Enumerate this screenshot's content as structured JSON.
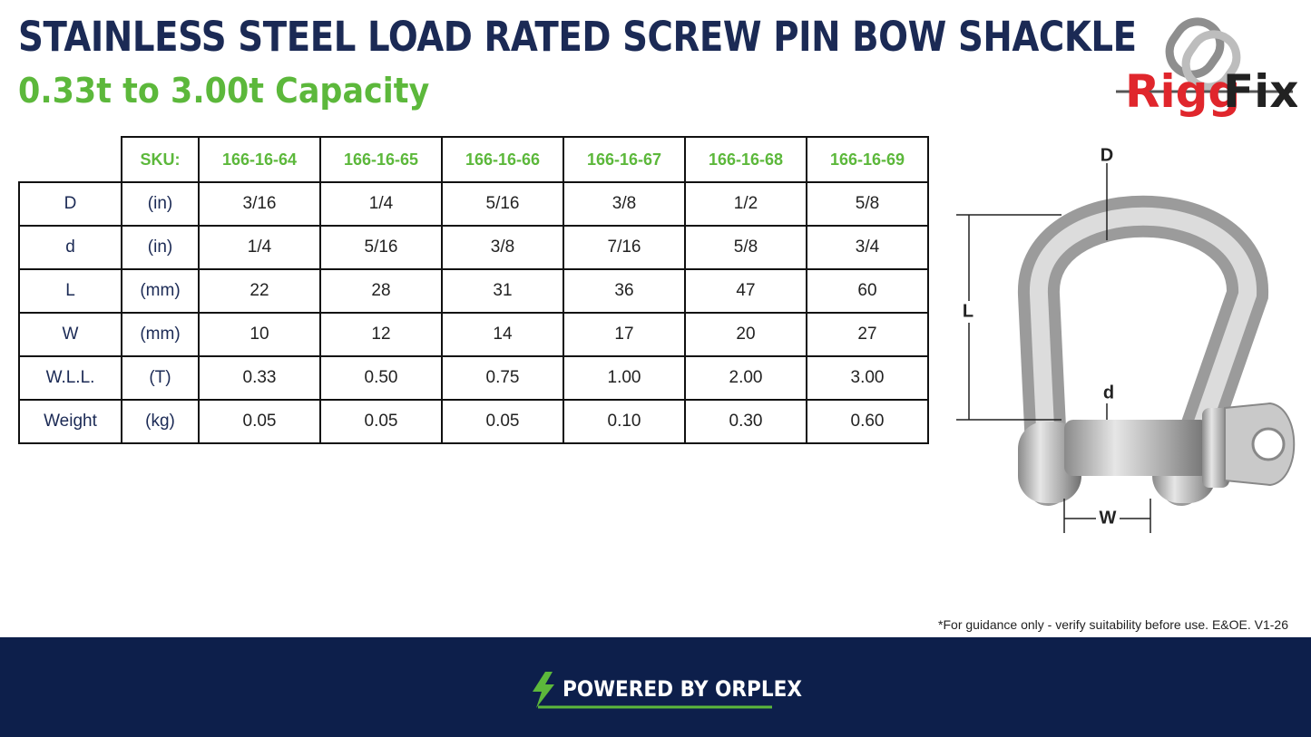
{
  "header": {
    "title": "STAINLESS STEEL LOAD RATED SCREW PIN BOW SHACKLE",
    "subtitle": "0.33t to 3.00t Capacity"
  },
  "logo": {
    "part1": "Rigg",
    "part2": "Fix"
  },
  "table": {
    "header": [
      "SKU:",
      "166-16-64",
      "166-16-65",
      "166-16-66",
      "166-16-67",
      "166-16-68",
      "166-16-69"
    ],
    "rows": [
      [
        "D",
        "(in)",
        "3/16",
        "1/4",
        "5/16",
        "3/8",
        "1/2",
        "5/8"
      ],
      [
        "d",
        "(in)",
        "1/4",
        "5/16",
        "3/8",
        "7/16",
        "5/8",
        "3/4"
      ],
      [
        "L",
        "(mm)",
        "22",
        "28",
        "31",
        "36",
        "47",
        "60"
      ],
      [
        "W",
        "(mm)",
        "10",
        "12",
        "14",
        "17",
        "20",
        "27"
      ],
      [
        "W.L.L.",
        "(T)",
        "0.33",
        "0.50",
        "0.75",
        "1.00",
        "2.00",
        "3.00"
      ],
      [
        "Weight",
        "(kg)",
        "0.05",
        "0.05",
        "0.05",
        "0.10",
        "0.30",
        "0.60"
      ]
    ]
  },
  "diagram": {
    "labels": [
      "D",
      "L",
      "d",
      "W"
    ]
  },
  "note": "*For guidance only - verify suitability before use. E&OE.  V1-26",
  "footer": {
    "brand": "POWERED BY ORPLEX"
  }
}
